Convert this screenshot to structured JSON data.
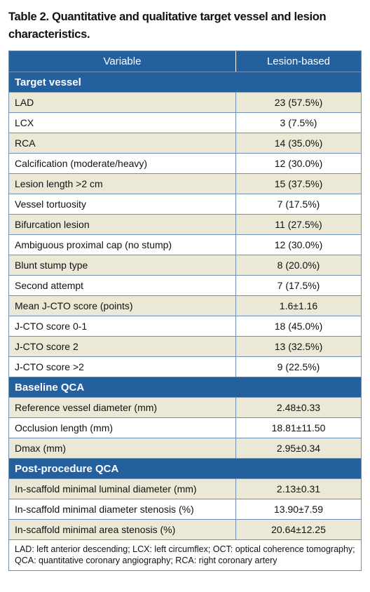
{
  "title": "Table 2. Quantitative and qualitative target vessel and lesion characteristics.",
  "table": {
    "header": [
      "Variable",
      "Lesion-based"
    ],
    "sections": [
      {
        "title": "Target vessel",
        "rows": [
          [
            "LAD",
            "23 (57.5%)"
          ],
          [
            "LCX",
            "3 (7.5%)"
          ],
          [
            "RCA",
            "14 (35.0%)"
          ],
          [
            "Calcification (moderate/heavy)",
            "12 (30.0%)"
          ],
          [
            "Lesion length >2 cm",
            "15 (37.5%)"
          ],
          [
            "Vessel tortuosity",
            "7 (17.5%)"
          ],
          [
            "Bifurcation lesion",
            "11 (27.5%)"
          ],
          [
            "Ambiguous proximal cap (no stump)",
            "12 (30.0%)"
          ],
          [
            "Blunt stump type",
            "8 (20.0%)"
          ],
          [
            "Second attempt",
            "7 (17.5%)"
          ],
          [
            "Mean J-CTO score (points)",
            "1.6±1.16"
          ],
          [
            "J-CTO score 0-1",
            "18 (45.0%)"
          ],
          [
            "J-CTO score 2",
            "13 (32.5%)"
          ],
          [
            "J-CTO score >2",
            "9 (22.5%)"
          ]
        ]
      },
      {
        "title": "Baseline QCA",
        "rows": [
          [
            "Reference vessel diameter (mm)",
            "2.48±0.33"
          ],
          [
            "Occlusion length (mm)",
            "18.81±11.50"
          ],
          [
            "Dmax (mm)",
            "2.95±0.34"
          ]
        ]
      },
      {
        "title": "Post-procedure QCA",
        "rows": [
          [
            "In-scaffold minimal luminal diameter (mm)",
            "2.13±0.31"
          ],
          [
            "In-scaffold minimal diameter stenosis (%)",
            "13.90±7.59"
          ],
          [
            "In-scaffold minimal area stenosis (%)",
            "20.64±12.25"
          ]
        ]
      }
    ]
  },
  "footnote": "LAD: left anterior descending; LCX: left circumflex; OCT: optical coherence tomography; QCA: quantitative coronary angiography; RCA: right coronary artery"
}
